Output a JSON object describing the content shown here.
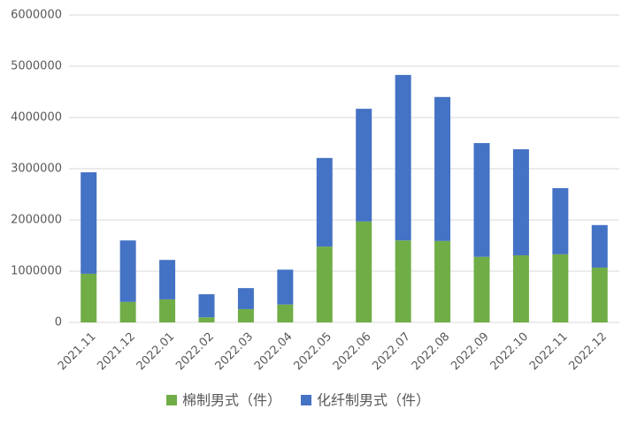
{
  "chart_data": {
    "type": "bar",
    "stacked": true,
    "categories": [
      "2021.11",
      "2021.12",
      "2022.01",
      "2022.02",
      "2022.03",
      "2022.04",
      "2022.05",
      "2022.06",
      "2022.07",
      "2022.08",
      "2022.09",
      "2022.10",
      "2022.11",
      "2022.12"
    ],
    "series": [
      {
        "name": "棉制男式（件）",
        "color": "#70ad47",
        "values": [
          950000,
          400000,
          450000,
          100000,
          260000,
          350000,
          1480000,
          1970000,
          1600000,
          1590000,
          1280000,
          1310000,
          1330000,
          1070000
        ]
      },
      {
        "name": "化纤制男式（件）",
        "color": "#4472c4",
        "values": [
          1980000,
          1200000,
          770000,
          450000,
          410000,
          680000,
          1730000,
          2200000,
          3230000,
          2810000,
          2220000,
          2070000,
          1290000,
          830000
        ]
      }
    ],
    "ylim": [
      0,
      6000000
    ],
    "yticks": [
      0,
      1000000,
      2000000,
      3000000,
      4000000,
      5000000,
      6000000
    ],
    "grid": true,
    "legend": "bottom"
  }
}
